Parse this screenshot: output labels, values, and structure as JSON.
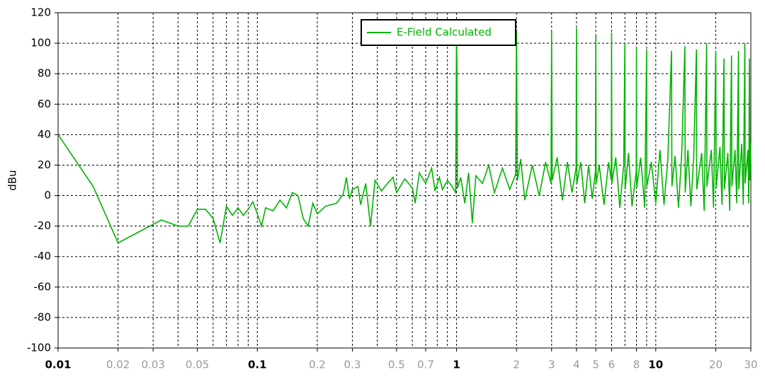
{
  "chart_data": {
    "type": "line",
    "ylabel": "dBu",
    "xscale": "log",
    "grid": true,
    "legend": "top-center",
    "xlim": [
      0.01,
      30
    ],
    "ylim": [
      -100,
      120
    ],
    "yticks": [
      -100,
      -80,
      -60,
      -40,
      -20,
      0,
      20,
      40,
      60,
      80,
      100,
      120
    ],
    "xticks": [
      0.01,
      0.02,
      0.03,
      0.05,
      0.1,
      0.2,
      0.3,
      0.5,
      0.7,
      1,
      2,
      3,
      4,
      5,
      6,
      8,
      10,
      20,
      30
    ],
    "x": [
      0.01,
      0.015,
      0.02,
      0.033,
      0.04,
      0.045,
      0.05,
      0.055,
      0.06,
      0.065,
      0.07,
      0.075,
      0.08,
      0.085,
      0.09,
      0.095,
      0.1,
      0.105,
      0.11,
      0.12,
      0.13,
      0.14,
      0.15,
      0.16,
      0.17,
      0.18,
      0.19,
      0.2,
      0.22,
      0.25,
      0.27,
      0.28,
      0.29,
      0.3,
      0.32,
      0.33,
      0.35,
      0.37,
      0.39,
      0.42,
      0.45,
      0.48,
      0.5,
      0.55,
      0.6,
      0.62,
      0.65,
      0.7,
      0.75,
      0.78,
      0.82,
      0.85,
      0.9,
      0.95,
      0.99,
      1,
      1.005,
      1.01,
      1.05,
      1.1,
      1.15,
      1.2,
      1.25,
      1.35,
      1.45,
      1.55,
      1.7,
      1.85,
      1.98,
      2,
      2.02,
      2.1,
      2.2,
      2.4,
      2.6,
      2.8,
      2.98,
      3,
      3.02,
      3.2,
      3.4,
      3.6,
      3.8,
      3.98,
      4,
      4.02,
      4.2,
      4.4,
      4.6,
      4.8,
      4.98,
      5,
      5.02,
      5.2,
      5.5,
      5.8,
      5.98,
      6,
      6.02,
      6.3,
      6.6,
      6.9,
      7,
      7.02,
      7.3,
      7.6,
      7.98,
      8,
      8.02,
      8.4,
      8.8,
      9,
      9.02,
      9.5,
      10,
      10.5,
      11,
      11.5,
      12,
      12.05,
      12.5,
      13,
      13.5,
      14,
      14.05,
      14.5,
      15,
      15.5,
      16,
      16.05,
      17,
      17.5,
      18,
      18.05,
      19,
      19.5,
      20,
      20.1,
      21,
      21.5,
      22,
      22.1,
      23,
      23.5,
      24,
      24.1,
      25,
      25.5,
      26,
      26.1,
      27,
      27.5,
      28,
      28.1,
      29,
      29.3,
      29.5,
      29.7,
      30
    ],
    "series": [
      {
        "name": "E-Field Calculated",
        "color": "#00b400",
        "values": [
          40,
          6,
          -31,
          -16,
          -20,
          -20,
          -9,
          -9,
          -15,
          -31,
          -7,
          -13,
          -8,
          -13,
          -9,
          -4,
          -12,
          -20,
          -8,
          -10,
          -3,
          -8,
          2,
          0,
          -15,
          -20,
          -5,
          -12,
          -7,
          -5,
          1,
          12,
          -2,
          4,
          6,
          -6,
          8,
          -20,
          10,
          3,
          8,
          12,
          2,
          11,
          5,
          -5,
          15,
          8,
          18,
          3,
          12,
          4,
          10,
          6,
          2,
          106,
          82,
          5,
          12,
          -5,
          15,
          -18,
          13,
          8,
          20,
          2,
          18,
          4,
          14,
          108,
          10,
          24,
          -3,
          20,
          0,
          22,
          8,
          108,
          10,
          25,
          -3,
          22,
          2,
          18,
          110,
          8,
          22,
          -5,
          20,
          -2,
          16,
          105,
          8,
          20,
          -6,
          22,
          10,
          107,
          8,
          25,
          -8,
          20,
          100,
          4,
          28,
          -7,
          16,
          97,
          5,
          25,
          -8,
          96,
          6,
          22,
          -5,
          30,
          -6,
          24,
          95,
          6,
          26,
          -8,
          28,
          98,
          2,
          30,
          -7,
          25,
          96,
          4,
          28,
          -10,
          100,
          6,
          30,
          -8,
          95,
          5,
          32,
          -6,
          90,
          4,
          28,
          -10,
          92,
          6,
          30,
          -5,
          95,
          4,
          34,
          -6,
          100,
          8,
          30,
          -5,
          90,
          10,
          35
        ]
      }
    ]
  }
}
